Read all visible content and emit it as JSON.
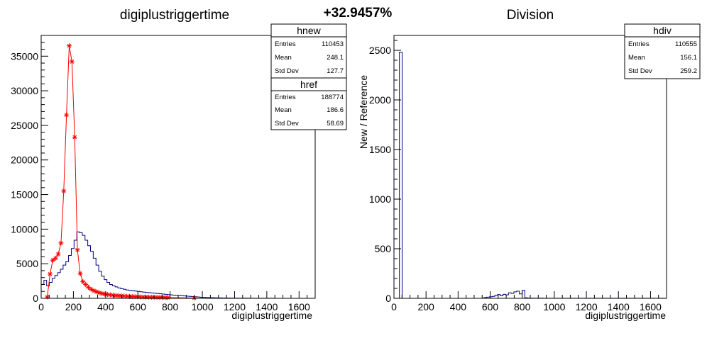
{
  "header": {
    "percent_label": "+32.9457%"
  },
  "charts": [
    {
      "title": "digiplustriggertime",
      "xlabel": "digiplustriggertime",
      "ylabel": "",
      "xticks": [
        "0",
        "200",
        "400",
        "600",
        "800",
        "1000",
        "1200",
        "1400",
        "1600"
      ],
      "yticks": [
        "0",
        "5000",
        "10000",
        "15000",
        "20000",
        "25000",
        "30000",
        "35000"
      ],
      "stats_boxes": [
        {
          "name": "hnew",
          "rows": [
            {
              "label": "Entries",
              "value": "110453"
            },
            {
              "label": "Mean",
              "value": "248.1"
            },
            {
              "label": "Std Dev",
              "value": "127.7"
            }
          ]
        },
        {
          "name": "href",
          "rows": [
            {
              "label": "Entries",
              "value": "188774"
            },
            {
              "label": "Mean",
              "value": "186.6"
            },
            {
              "label": "Std Dev",
              "value": "58.69"
            }
          ]
        }
      ]
    },
    {
      "title": "Division",
      "xlabel": "digiplustriggertime",
      "ylabel": "New / Reference",
      "xticks": [
        "0",
        "200",
        "400",
        "600",
        "800",
        "1000",
        "1200",
        "1400",
        "1600"
      ],
      "yticks": [
        "0",
        "500",
        "1000",
        "1500",
        "2000",
        "2500"
      ],
      "stats_boxes": [
        {
          "name": "hdiv",
          "rows": [
            {
              "label": "Entries",
              "value": "110555"
            },
            {
              "label": "Mean",
              "value": "156.1"
            },
            {
              "label": "Std Dev",
              "value": "259.2"
            }
          ]
        }
      ]
    }
  ],
  "chart_data": [
    {
      "type": "histogram",
      "title": "digiplustriggertime",
      "xlabel": "digiplustriggertime",
      "xlim": [
        0,
        1700
      ],
      "ylim": [
        0,
        38000
      ],
      "grid": false,
      "series": [
        {
          "name": "hnew",
          "color": "#000080",
          "style": "step",
          "bin_width": 17,
          "values": [
            2000,
            2600,
            1800,
            2300,
            2900,
            3300,
            3700,
            4200,
            4800,
            5300,
            6200,
            7200,
            8400,
            9600,
            9500,
            9100,
            8400,
            7600,
            6800,
            5800,
            4800,
            3900,
            3200,
            2700,
            2300,
            2000,
            1800,
            1650,
            1500,
            1400,
            1300,
            1200,
            1150,
            1100,
            1050,
            1000,
            950,
            900,
            860,
            820,
            780,
            740,
            700,
            660,
            620,
            580,
            540,
            500,
            460,
            430,
            400,
            370,
            340,
            310,
            280,
            250,
            220,
            190,
            160,
            140,
            120,
            100,
            90,
            80,
            70,
            60,
            50,
            45,
            40,
            35,
            30,
            28,
            26,
            24,
            22,
            20,
            18,
            16,
            14,
            12,
            10,
            10,
            9,
            8,
            7,
            6,
            5,
            5,
            4,
            4,
            3,
            3,
            3,
            2,
            2,
            2,
            2,
            1,
            1,
            1
          ]
        },
        {
          "name": "href",
          "color": "#ff0000",
          "style": "markers",
          "marker": "asterisk",
          "points": [
            [
              38,
              200
            ],
            [
              55,
              3500
            ],
            [
              72,
              5500
            ],
            [
              89,
              5800
            ],
            [
              106,
              6400
            ],
            [
              123,
              8000
            ],
            [
              140,
              15500
            ],
            [
              157,
              26500
            ],
            [
              174,
              36500
            ],
            [
              191,
              34200
            ],
            [
              208,
              23300
            ],
            [
              225,
              7000
            ],
            [
              242,
              3600
            ],
            [
              259,
              2400
            ],
            [
              276,
              2000
            ],
            [
              293,
              1600
            ],
            [
              310,
              1300
            ],
            [
              327,
              1100
            ],
            [
              344,
              950
            ],
            [
              361,
              800
            ],
            [
              378,
              700
            ],
            [
              395,
              600
            ],
            [
              412,
              550
            ],
            [
              429,
              500
            ],
            [
              446,
              450
            ],
            [
              463,
              400
            ],
            [
              480,
              380
            ],
            [
              497,
              350
            ],
            [
              514,
              320
            ],
            [
              531,
              300
            ],
            [
              548,
              280
            ],
            [
              565,
              260
            ],
            [
              582,
              240
            ],
            [
              599,
              220
            ],
            [
              616,
              200
            ],
            [
              633,
              190
            ],
            [
              650,
              180
            ],
            [
              667,
              170
            ],
            [
              684,
              160
            ],
            [
              701,
              150
            ],
            [
              718,
              140
            ],
            [
              735,
              130
            ],
            [
              752,
              120
            ],
            [
              769,
              110
            ],
            [
              786,
              100
            ],
            [
              950,
              50
            ]
          ]
        }
      ]
    },
    {
      "type": "histogram",
      "title": "Division",
      "xlabel": "digiplustriggertime",
      "ylabel": "New / Reference",
      "xlim": [
        0,
        1700
      ],
      "ylim": [
        0,
        2650
      ],
      "grid": false,
      "series": [
        {
          "name": "hdiv",
          "color": "#000080",
          "style": "step",
          "bin_width": 17,
          "values": [
            0,
            0,
            2480,
            0,
            0,
            0,
            0,
            0,
            0,
            0,
            0,
            0,
            0,
            0,
            0,
            0,
            0,
            0,
            0,
            0,
            0,
            0,
            0,
            0,
            0,
            0,
            0,
            0,
            0,
            0,
            0,
            0,
            0,
            8,
            12,
            15,
            20,
            30,
            38,
            25,
            40,
            35,
            55,
            50,
            65,
            72,
            45,
            80,
            5,
            3,
            2,
            2,
            2,
            2,
            2,
            1,
            1,
            1,
            1,
            1,
            1,
            1,
            1,
            1,
            1,
            1,
            1,
            1,
            1,
            1,
            1,
            1,
            1,
            1,
            1,
            1,
            1,
            1,
            1,
            1,
            1,
            1,
            1,
            1,
            1,
            1,
            1,
            1,
            1,
            1,
            1,
            1,
            1,
            1,
            1,
            1,
            1,
            1,
            1,
            1
          ]
        }
      ]
    }
  ]
}
